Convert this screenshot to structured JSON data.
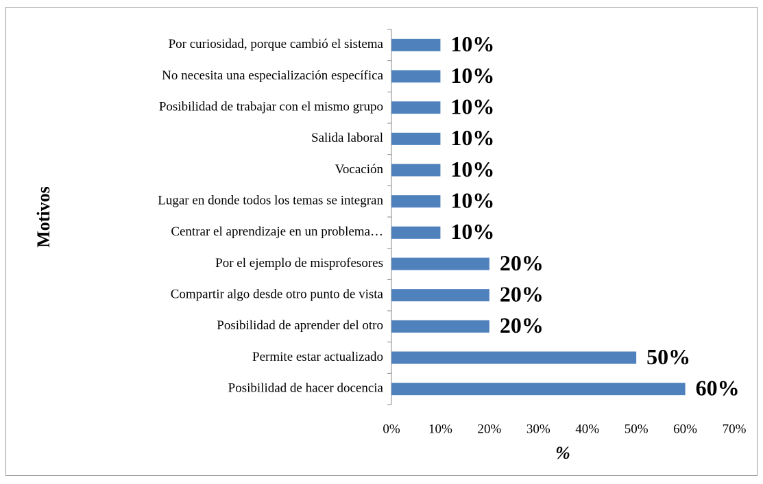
{
  "chart_data": {
    "type": "bar",
    "orientation": "horizontal",
    "x_label": "%",
    "y_label": "Motivos",
    "categories": [
      "Por curiosidad, porque cambió el sistema",
      "No necesita una especialización específica",
      "Posibilidad de trabajar con el mismo grupo",
      "Salida laboral",
      "Vocación",
      "Lugar en donde todos los temas se integran",
      "Centrar el aprendizaje en un problema…",
      "Por el ejemplo de misprofesores",
      "Compartir algo desde otro punto de vista",
      "Posibilidad de aprender del otro",
      "Permite estar actualizado",
      "Posibilidad de hacer docencia"
    ],
    "values": [
      10,
      10,
      10,
      10,
      10,
      10,
      10,
      20,
      20,
      20,
      50,
      60
    ],
    "value_labels": [
      "10%",
      "10%",
      "10%",
      "10%",
      "10%",
      "10%",
      "10%",
      "20%",
      "20%",
      "20%",
      "50%",
      "60%"
    ],
    "color": "#4f81bd",
    "xlim": [
      0,
      70
    ],
    "xticks": [
      {
        "value": 0,
        "label": "0%"
      },
      {
        "value": 10,
        "label": "10%"
      },
      {
        "value": 20,
        "label": "20%"
      },
      {
        "value": 30,
        "label": "30%"
      },
      {
        "value": 40,
        "label": "40%"
      },
      {
        "value": 50,
        "label": "50%"
      },
      {
        "value": 60,
        "label": "60%"
      },
      {
        "value": 70,
        "label": "70%"
      }
    ],
    "grid": false
  }
}
